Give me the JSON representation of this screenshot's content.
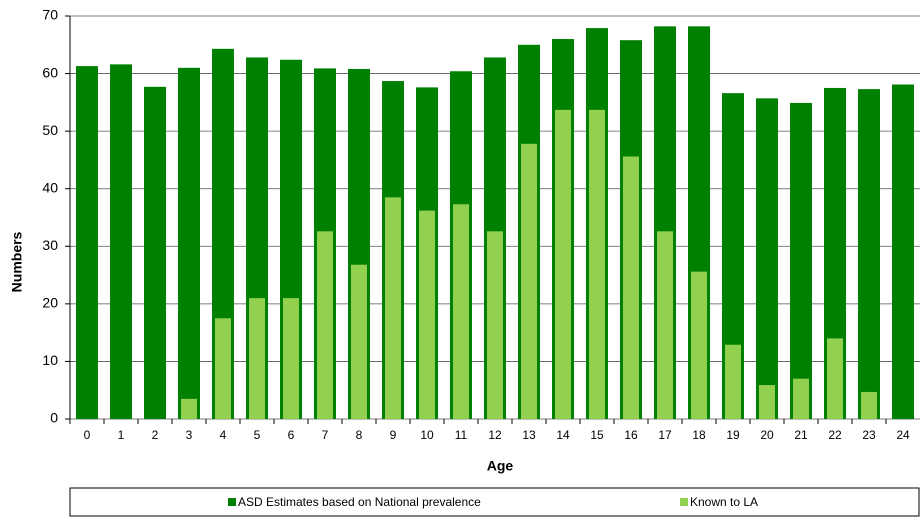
{
  "chart_data": {
    "type": "bar",
    "x_label": "Age",
    "y_label": "Numbers",
    "categories": [
      "0",
      "1",
      "2",
      "3",
      "4",
      "5",
      "6",
      "7",
      "8",
      "9",
      "10",
      "11",
      "12",
      "13",
      "14",
      "15",
      "16",
      "17",
      "18",
      "19",
      "20",
      "21",
      "22",
      "23",
      "24"
    ],
    "series": [
      {
        "name": "ASD Estimates based on National prevalence",
        "color": "#008000",
        "values": [
          61.3,
          61.6,
          57.7,
          61.0,
          64.3,
          62.8,
          62.4,
          60.9,
          60.8,
          58.7,
          57.6,
          60.4,
          62.8,
          65.0,
          66.0,
          67.9,
          65.8,
          68.2,
          68.2,
          56.6,
          55.7,
          54.9,
          57.5,
          57.3,
          58.1
        ]
      },
      {
        "name": "Known to LA",
        "color": "#92d050",
        "values": [
          0,
          0,
          0,
          3.5,
          17.5,
          21.0,
          21.0,
          32.6,
          26.8,
          38.5,
          36.2,
          37.3,
          32.6,
          47.8,
          53.7,
          53.7,
          45.6,
          32.6,
          25.6,
          12.9,
          5.9,
          7.0,
          14.0,
          4.7,
          0
        ]
      }
    ],
    "ylim": [
      0,
      70
    ],
    "yticks": [
      0,
      10,
      20,
      30,
      40,
      50,
      60,
      70
    ],
    "grid": true,
    "legend": "bottom"
  }
}
